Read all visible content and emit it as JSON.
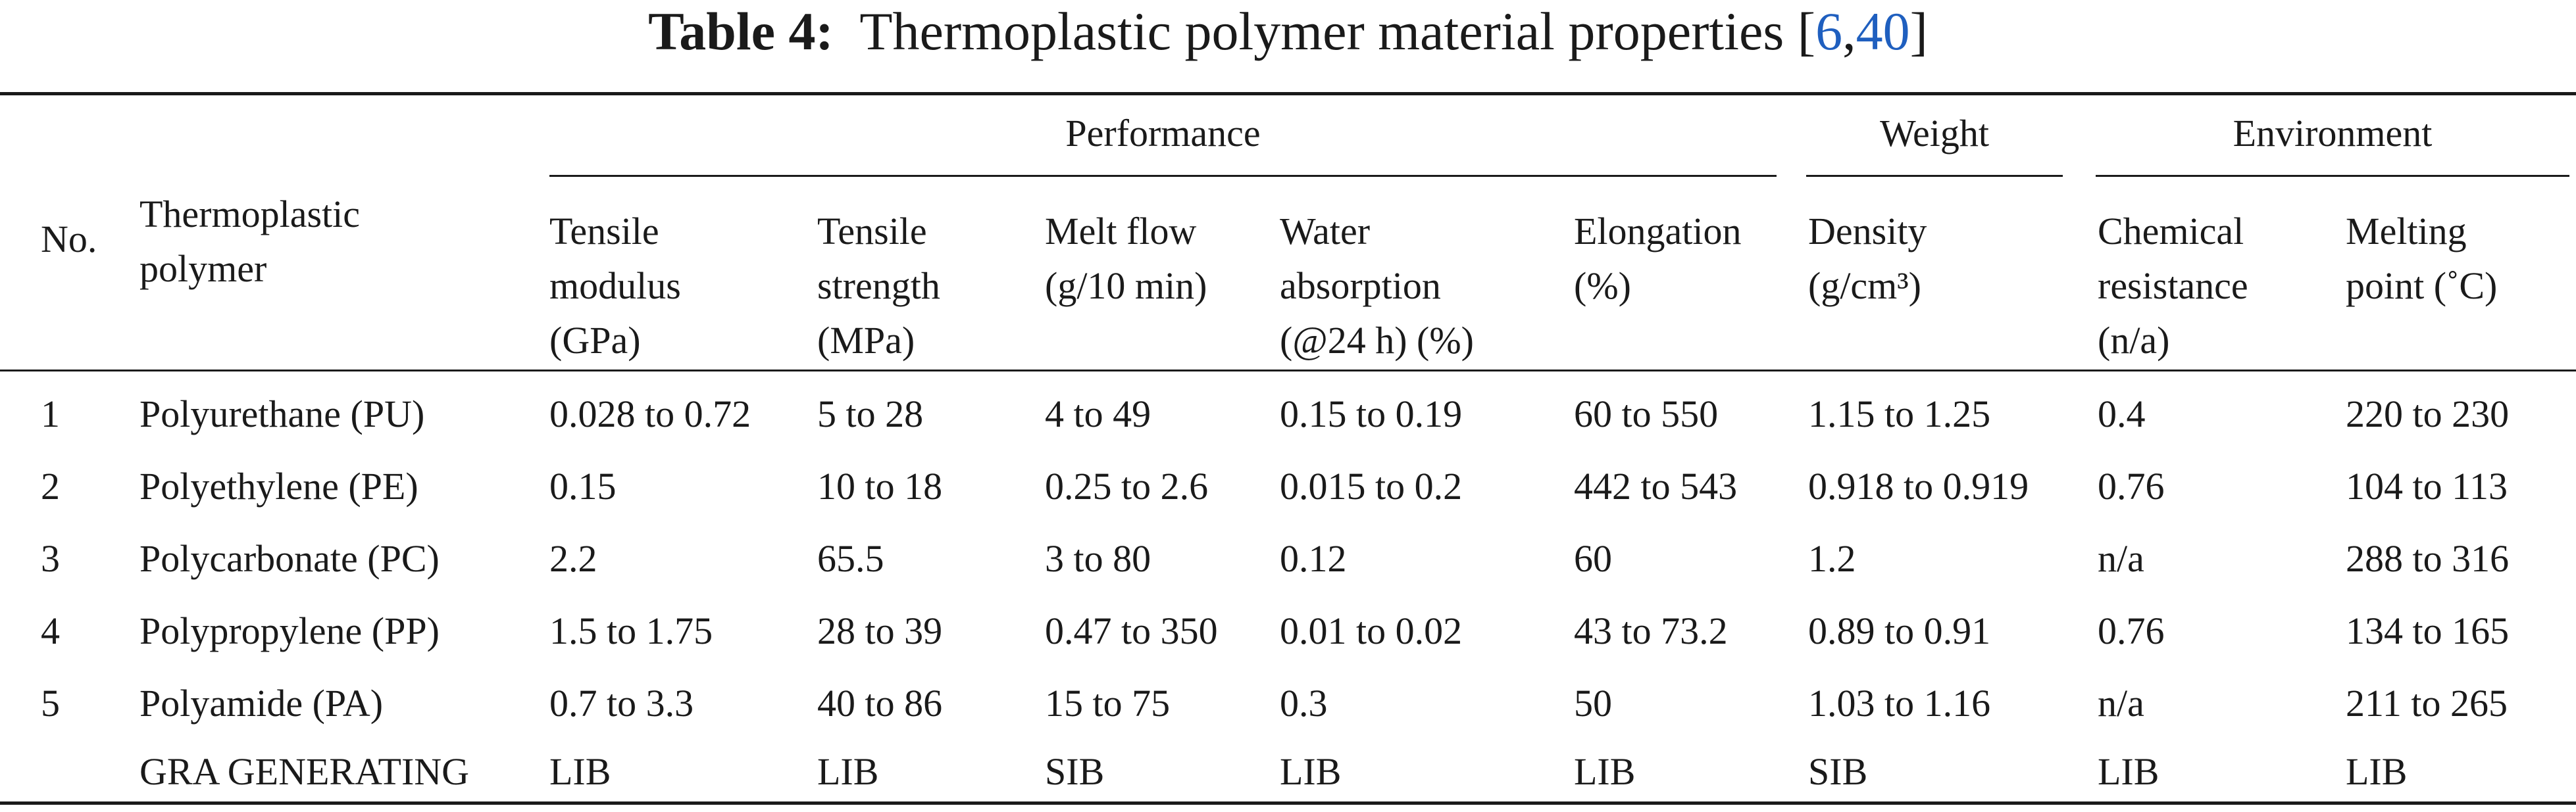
{
  "caption": {
    "label": "Table 4:",
    "text": "Thermoplastic polymer material properties [",
    "ref1": "6",
    "comma": ",",
    "ref2": "40",
    "close": "]"
  },
  "groups": {
    "performance": "Performance",
    "weight": "Weight",
    "environment": "Environment"
  },
  "headers": {
    "no": "No.",
    "polymer": "Thermoplastic\npolymer",
    "tensile_modulus": "Tensile\nmodulus\n(GPa)",
    "tensile_strength": "Tensile\nstrength\n(MPa)",
    "melt_flow": "Melt flow\n(g/10 min)",
    "water_absorption": "Water\nabsorption\n(@24 h) (%)",
    "elongation": "Elongation\n(%)",
    "density": "Density\n(g/cm³)",
    "chemical_resistance": "Chemical\nresistance\n(n/a)",
    "melting_point": "Melting\npoint (˚C)"
  },
  "rows": [
    [
      "1",
      "Polyurethane (PU)",
      "0.028 to 0.72",
      "5 to 28",
      "4 to 49",
      "0.15 to 0.19",
      "60 to 550",
      "1.15 to 1.25",
      "0.4",
      "220 to 230"
    ],
    [
      "2",
      "Polyethylene (PE)",
      "0.15",
      "10 to 18",
      "0.25 to 2.6",
      "0.015 to 0.2",
      "442 to 543",
      "0.918 to 0.919",
      "0.76",
      "104 to 113"
    ],
    [
      "3",
      "Polycarbonate (PC)",
      "2.2",
      "65.5",
      "3 to 80",
      "0.12",
      "60",
      "1.2",
      "n/a",
      "288 to 316"
    ],
    [
      "4",
      "Polypropylene (PP)",
      "1.5 to 1.75",
      "28 to 39",
      "0.47 to 350",
      "0.01 to 0.02",
      "43 to 73.2",
      "0.89 to 0.91",
      "0.76",
      "134 to 165"
    ],
    [
      "5",
      "Polyamide (PA)",
      "0.7 to 3.3",
      "40 to 86",
      "15 to 75",
      "0.3",
      "50",
      "1.03 to 1.16",
      "n/a",
      "211 to 265"
    ],
    [
      "",
      "GRA GENERATING",
      "LIB",
      "LIB",
      "SIB",
      "LIB",
      "LIB",
      "SIB",
      "LIB",
      "LIB"
    ]
  ]
}
